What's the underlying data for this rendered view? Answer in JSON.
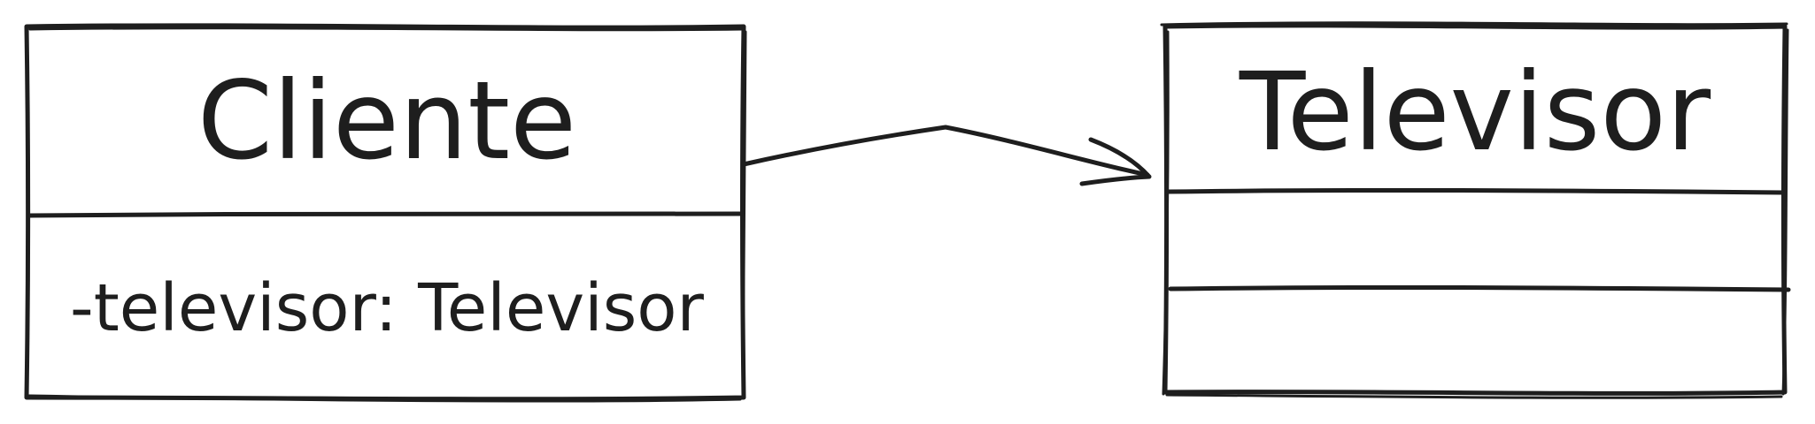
{
  "diagram": {
    "classes": [
      {
        "name": "Cliente",
        "attributes": [
          "-televisor: Televisor"
        ],
        "operations": []
      },
      {
        "name": "Televisor",
        "attributes": [],
        "operations": []
      }
    ],
    "relations": [
      {
        "from": "Cliente",
        "to": "Televisor",
        "type": "association",
        "arrowhead": "open"
      }
    ],
    "stroke_color": "#1e1e1e",
    "background": "#ffffff"
  }
}
